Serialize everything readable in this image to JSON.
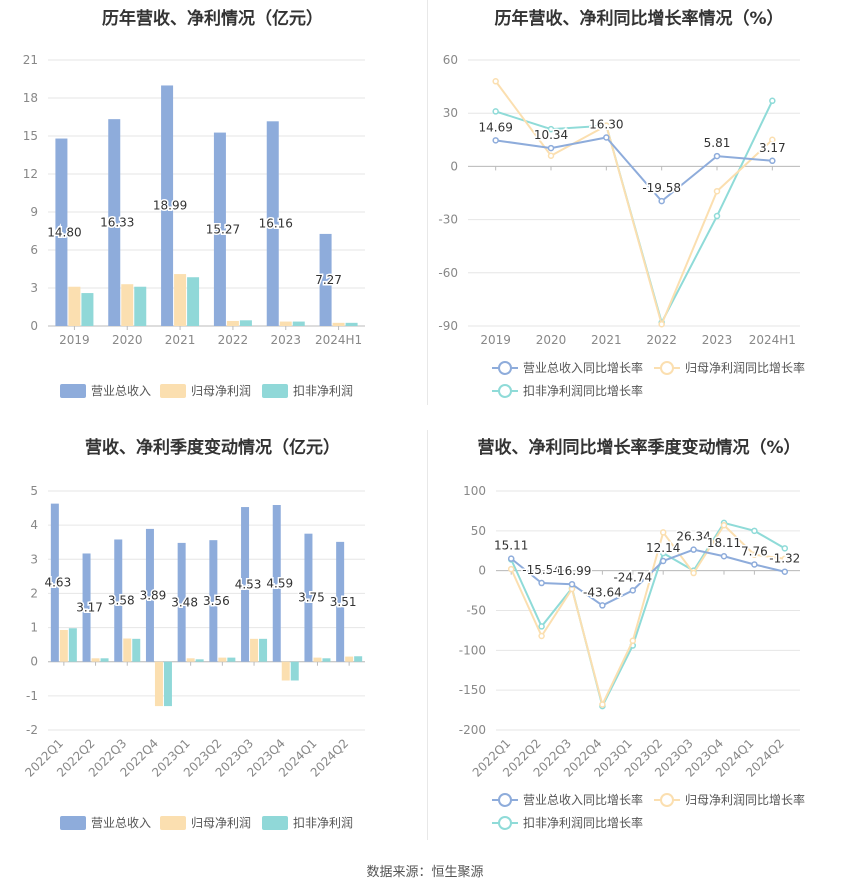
{
  "footer": "数据来源：恒生聚源",
  "colors": {
    "revenue_bar": "#8eacdb",
    "netprofit_bar": "#fbdfb0",
    "deducted_bar": "#90d8d8",
    "revenue_line": "#8eacdb",
    "netprofit_line": "#fbdfb0",
    "deducted_line": "#8fdbd8",
    "grid": "#e6e6e6",
    "axis_text": "#888888",
    "label_text": "#333333"
  },
  "chart_data": [
    {
      "id": "annual_amounts",
      "type": "bar",
      "title": "历年营收、净利情况（亿元）",
      "categories": [
        "2019",
        "2020",
        "2021",
        "2022",
        "2023",
        "2024H1"
      ],
      "ylim": [
        0,
        21
      ],
      "yticks": [
        0,
        3,
        6,
        9,
        12,
        15,
        18,
        21
      ],
      "ytick_labels": [
        "0",
        "3",
        "6",
        "9",
        "12",
        "15",
        "18",
        "21"
      ],
      "grid": true,
      "legend_position": "bottom",
      "series": [
        {
          "name": "营业总收入",
          "values": [
            14.8,
            16.33,
            18.99,
            15.27,
            16.16,
            7.27
          ],
          "labels": [
            "14.80",
            "16.33",
            "18.99",
            "15.27",
            "16.16",
            "7.27"
          ]
        },
        {
          "name": "归母净利润",
          "values": [
            3.1,
            3.3,
            4.1,
            0.4,
            0.35,
            0.25
          ]
        },
        {
          "name": "扣非净利润",
          "values": [
            2.6,
            3.1,
            3.85,
            0.45,
            0.35,
            0.25
          ]
        }
      ]
    },
    {
      "id": "annual_growth",
      "type": "line",
      "title": "历年营收、净利同比增长率情况（%）",
      "categories": [
        "2019",
        "2020",
        "2021",
        "2022",
        "2023",
        "2024H1"
      ],
      "ylim": [
        -90,
        60
      ],
      "yticks": [
        -90,
        -60,
        -30,
        0,
        30,
        60
      ],
      "ytick_labels": [
        "-90",
        "-60",
        "-30",
        "0",
        "30",
        "60"
      ],
      "grid": true,
      "legend_position": "bottom",
      "series": [
        {
          "name": "营业总收入同比增长率",
          "values": [
            14.69,
            10.34,
            16.3,
            -19.58,
            5.81,
            3.17
          ],
          "labels": [
            "14.69",
            "10.34",
            "16.30",
            "-19.58",
            "5.81",
            "3.17"
          ]
        },
        {
          "name": "归母净利润同比增长率",
          "values": [
            48,
            6,
            23,
            -89,
            -14,
            15
          ]
        },
        {
          "name": "扣非净利润同比增长率",
          "values": [
            31,
            21,
            23,
            -88,
            -28,
            37
          ]
        }
      ]
    },
    {
      "id": "quarterly_amounts",
      "type": "bar",
      "title": "营收、净利季度变动情况（亿元）",
      "categories": [
        "2022Q1",
        "2022Q2",
        "2022Q3",
        "2022Q4",
        "2023Q1",
        "2023Q2",
        "2023Q3",
        "2023Q4",
        "2024Q1",
        "2024Q2"
      ],
      "ylim": [
        -2,
        5
      ],
      "yticks": [
        -2,
        -1,
        0,
        1,
        2,
        3,
        4,
        5
      ],
      "ytick_labels": [
        "-2",
        "-1",
        "0",
        "1",
        "2",
        "3",
        "4",
        "5"
      ],
      "grid": true,
      "legend_position": "bottom",
      "series": [
        {
          "name": "营业总收入",
          "values": [
            4.63,
            3.17,
            3.58,
            3.89,
            3.48,
            3.56,
            4.53,
            4.59,
            3.75,
            3.51
          ],
          "labels": [
            "4.63",
            "3.17",
            "3.58",
            "3.89",
            "3.48",
            "3.56",
            "4.53",
            "4.59",
            "3.75",
            "3.51"
          ]
        },
        {
          "name": "归母净利润",
          "values": [
            0.93,
            0.1,
            0.68,
            -1.3,
            0.1,
            0.12,
            0.67,
            -0.55,
            0.12,
            0.15
          ]
        },
        {
          "name": "扣非净利润",
          "values": [
            0.98,
            0.1,
            0.67,
            -1.3,
            0.07,
            0.12,
            0.67,
            -0.55,
            0.1,
            0.16
          ]
        }
      ]
    },
    {
      "id": "quarterly_growth",
      "type": "line",
      "title": "营收、净利同比增长率季度变动情况（%）",
      "categories": [
        "2022Q1",
        "2022Q2",
        "2022Q3",
        "2022Q4",
        "2023Q1",
        "2023Q2",
        "2023Q3",
        "2023Q4",
        "2024Q1",
        "2024Q2"
      ],
      "ylim": [
        -200,
        100
      ],
      "yticks": [
        -200,
        -150,
        -100,
        -50,
        0,
        50,
        100
      ],
      "ytick_labels": [
        "-200",
        "-150",
        "-100",
        "-50",
        "0",
        "50",
        "100"
      ],
      "grid": true,
      "legend_position": "bottom",
      "series": [
        {
          "name": "营业总收入同比增长率",
          "values": [
            15.11,
            -15.54,
            -16.99,
            -43.64,
            -24.74,
            12.14,
            26.34,
            18.11,
            7.76,
            -1.32
          ],
          "labels": [
            "15.11",
            "-15.54",
            "-16.99",
            "-43.64",
            "-24.74",
            "12.14",
            "26.34",
            "18.11",
            "7.76",
            "-1.32"
          ]
        },
        {
          "name": "归母净利润同比增长率",
          "values": [
            2,
            -82,
            -23,
            -168,
            -88,
            48,
            -3,
            57,
            20,
            15
          ]
        },
        {
          "name": "扣非净利润同比增长率",
          "values": [
            14,
            -70,
            -22,
            -170,
            -94,
            22,
            0,
            60,
            50,
            28
          ]
        }
      ]
    }
  ]
}
